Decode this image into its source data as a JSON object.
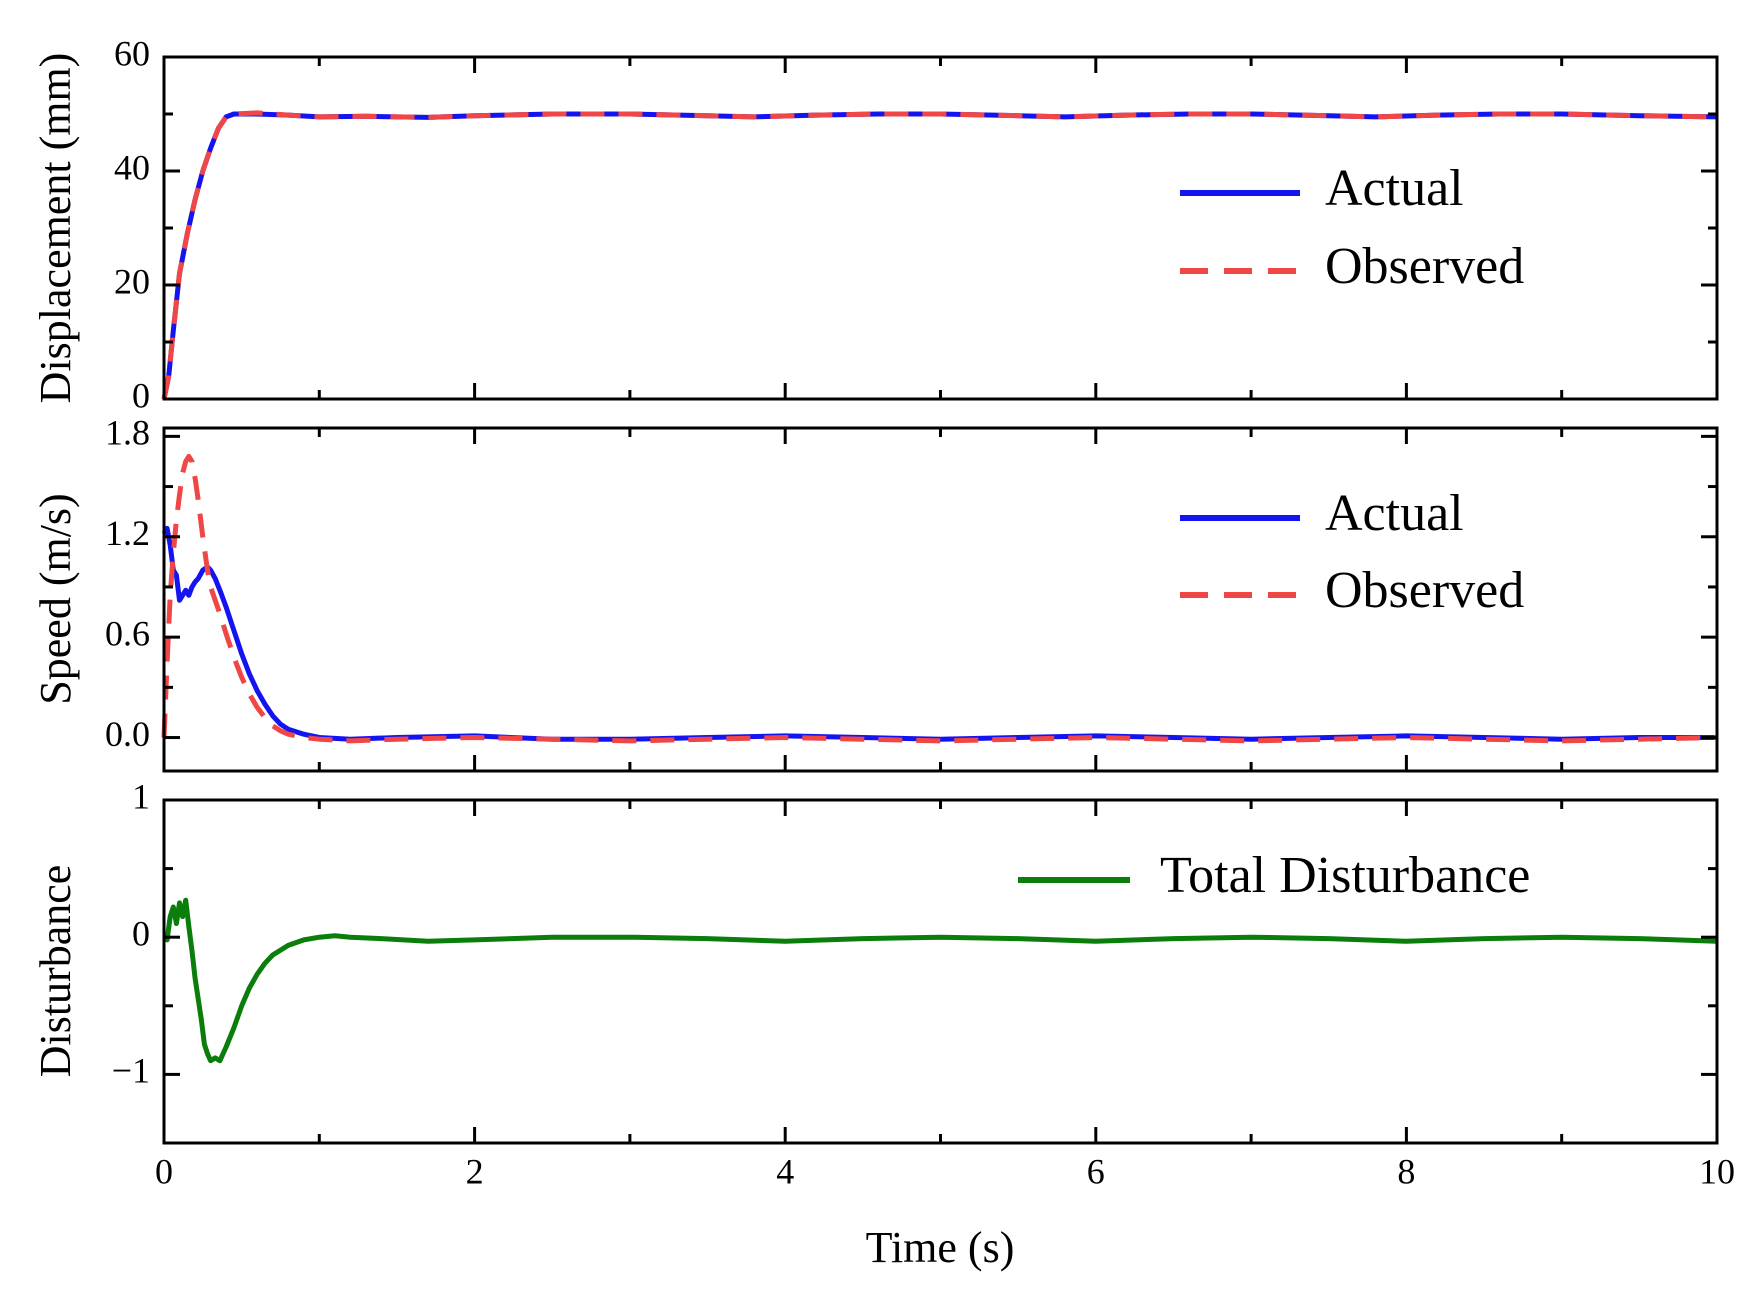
{
  "colors": {
    "actual": "#1414f0",
    "observed": "#f04646",
    "disturbance": "#0a7d0a",
    "axis": "#000000"
  },
  "chart_data": [
    {
      "type": "line",
      "id": "displacement",
      "ylabel": "Displacement (mm)",
      "xlim": [
        0,
        10
      ],
      "ylim": [
        0,
        60
      ],
      "yticks": [
        "0",
        "20",
        "40",
        "60"
      ],
      "yticks_values": [
        0,
        20,
        40,
        60
      ],
      "legend_position": "right",
      "series": [
        {
          "name": "Actual",
          "style": "solid",
          "color_key": "actual",
          "x": [
            0,
            0.03,
            0.06,
            0.1,
            0.15,
            0.2,
            0.25,
            0.3,
            0.35,
            0.4,
            0.45,
            0.6,
            0.8,
            1.0,
            1.3,
            1.7,
            2.0,
            2.5,
            3.0,
            3.5,
            3.8,
            4.2,
            4.6,
            5.0,
            5.5,
            5.8,
            6.2,
            6.6,
            7.0,
            7.5,
            7.8,
            8.2,
            8.6,
            9.0,
            9.5,
            10.0
          ],
          "values": [
            0,
            4,
            12,
            22,
            29,
            35,
            40,
            44,
            47.5,
            49.5,
            50,
            50,
            49.8,
            49.5,
            49.6,
            49.4,
            49.7,
            50,
            50,
            49.7,
            49.5,
            49.8,
            50,
            50,
            49.7,
            49.5,
            49.8,
            50,
            50,
            49.7,
            49.5,
            49.8,
            50,
            50,
            49.7,
            49.5
          ]
        },
        {
          "name": "Observed",
          "style": "dashed",
          "color_key": "observed",
          "x": [
            0,
            0.03,
            0.06,
            0.1,
            0.15,
            0.2,
            0.25,
            0.3,
            0.35,
            0.4,
            0.45,
            0.6,
            0.8,
            1.0,
            1.3,
            1.7,
            2.0,
            2.5,
            3.0,
            3.5,
            3.8,
            4.2,
            4.6,
            5.0,
            5.5,
            5.8,
            6.2,
            6.6,
            7.0,
            7.5,
            7.8,
            8.2,
            8.6,
            9.0,
            9.5,
            10.0
          ],
          "values": [
            0,
            4,
            12,
            22,
            29,
            35,
            40,
            44,
            47.5,
            49.5,
            50,
            50.2,
            49.8,
            49.5,
            49.6,
            49.4,
            49.7,
            50,
            50,
            49.7,
            49.5,
            49.8,
            50,
            50,
            49.7,
            49.5,
            49.8,
            50,
            50,
            49.7,
            49.5,
            49.8,
            50,
            50,
            49.7,
            49.5
          ]
        }
      ]
    },
    {
      "type": "line",
      "id": "speed",
      "ylabel": "Speed (m/s)",
      "xlim": [
        0,
        10
      ],
      "ylim": [
        -0.2,
        1.85
      ],
      "yticks": [
        "0.0",
        "0.6",
        "1.2",
        "1.8"
      ],
      "yticks_values": [
        0,
        0.6,
        1.2,
        1.8
      ],
      "legend_position": "right",
      "series": [
        {
          "name": "Actual",
          "style": "solid",
          "color_key": "actual",
          "x": [
            0,
            0.02,
            0.04,
            0.06,
            0.08,
            0.1,
            0.12,
            0.14,
            0.16,
            0.18,
            0.2,
            0.22,
            0.25,
            0.28,
            0.3,
            0.33,
            0.36,
            0.4,
            0.45,
            0.5,
            0.55,
            0.6,
            0.65,
            0.7,
            0.75,
            0.8,
            0.9,
            1.0,
            1.2,
            1.5,
            2.0,
            2.5,
            3.0,
            3.5,
            4.0,
            4.5,
            5.0,
            5.5,
            6.0,
            6.5,
            7.0,
            7.5,
            8.0,
            8.5,
            9.0,
            9.5,
            10.0
          ],
          "values": [
            1.22,
            1.25,
            1.15,
            1.0,
            0.97,
            0.82,
            0.85,
            0.88,
            0.85,
            0.9,
            0.93,
            0.95,
            1.0,
            1.02,
            1.0,
            0.95,
            0.88,
            0.78,
            0.64,
            0.5,
            0.38,
            0.28,
            0.2,
            0.13,
            0.08,
            0.05,
            0.02,
            0.0,
            -0.01,
            0.0,
            0.01,
            -0.01,
            -0.01,
            0.0,
            0.01,
            0.0,
            -0.01,
            0.0,
            0.01,
            0.0,
            -0.01,
            0.0,
            0.01,
            0.0,
            -0.01,
            0.0,
            0.0
          ]
        },
        {
          "name": "Observed",
          "style": "dashed",
          "color_key": "observed",
          "x": [
            0,
            0.02,
            0.04,
            0.06,
            0.08,
            0.1,
            0.12,
            0.14,
            0.16,
            0.18,
            0.2,
            0.22,
            0.25,
            0.28,
            0.3,
            0.33,
            0.36,
            0.4,
            0.45,
            0.5,
            0.55,
            0.6,
            0.65,
            0.7,
            0.75,
            0.8,
            0.9,
            1.0,
            1.2,
            1.5,
            2.0,
            2.5,
            3.0,
            3.5,
            4.0,
            4.5,
            5.0,
            5.5,
            6.0,
            6.5,
            7.0,
            7.5,
            8.0,
            8.5,
            9.0,
            9.5,
            10.0
          ],
          "values": [
            0.0,
            0.45,
            0.85,
            1.1,
            1.3,
            1.45,
            1.58,
            1.65,
            1.68,
            1.65,
            1.55,
            1.42,
            1.2,
            1.0,
            0.9,
            0.82,
            0.74,
            0.62,
            0.48,
            0.36,
            0.26,
            0.18,
            0.12,
            0.07,
            0.04,
            0.02,
            0.0,
            -0.01,
            -0.02,
            -0.01,
            0.0,
            -0.01,
            -0.02,
            -0.01,
            0.0,
            -0.01,
            -0.02,
            -0.01,
            0.0,
            -0.01,
            -0.02,
            -0.01,
            0.0,
            -0.01,
            -0.02,
            -0.01,
            0.0
          ]
        }
      ]
    },
    {
      "type": "line",
      "id": "disturbance",
      "ylabel": "Disturbance",
      "xlabel": "Time (s)",
      "xlim": [
        0,
        10
      ],
      "ylim": [
        -1.5,
        1
      ],
      "yticks": [
        "−1",
        "0",
        "1"
      ],
      "yticks_values": [
        -1,
        0,
        1
      ],
      "xticks": [
        "0",
        "2",
        "4",
        "6",
        "8",
        "10"
      ],
      "xticks_values": [
        0,
        2,
        4,
        6,
        8,
        10
      ],
      "legend_position": "top-right",
      "series": [
        {
          "name": "Total Disturbance",
          "style": "solid",
          "color_key": "disturbance",
          "x": [
            0,
            0.02,
            0.04,
            0.06,
            0.08,
            0.1,
            0.12,
            0.14,
            0.16,
            0.18,
            0.2,
            0.22,
            0.24,
            0.26,
            0.28,
            0.3,
            0.33,
            0.36,
            0.4,
            0.45,
            0.5,
            0.55,
            0.6,
            0.65,
            0.7,
            0.8,
            0.9,
            1.0,
            1.1,
            1.2,
            1.4,
            1.7,
            2.0,
            2.5,
            3.0,
            3.5,
            4.0,
            4.5,
            5.0,
            5.5,
            6.0,
            6.5,
            7.0,
            7.5,
            8.0,
            8.5,
            9.0,
            9.5,
            10.0
          ],
          "values": [
            0.0,
            -0.02,
            0.15,
            0.22,
            0.1,
            0.25,
            0.15,
            0.27,
            0.08,
            -0.1,
            -0.3,
            -0.45,
            -0.6,
            -0.78,
            -0.85,
            -0.9,
            -0.88,
            -0.9,
            -0.8,
            -0.66,
            -0.5,
            -0.37,
            -0.27,
            -0.19,
            -0.13,
            -0.06,
            -0.02,
            0.0,
            0.01,
            0.0,
            -0.01,
            -0.03,
            -0.02,
            0.0,
            0.0,
            -0.01,
            -0.03,
            -0.01,
            0.0,
            -0.01,
            -0.03,
            -0.01,
            0.0,
            -0.01,
            -0.03,
            -0.01,
            0.0,
            -0.01,
            -0.03
          ]
        }
      ]
    }
  ]
}
